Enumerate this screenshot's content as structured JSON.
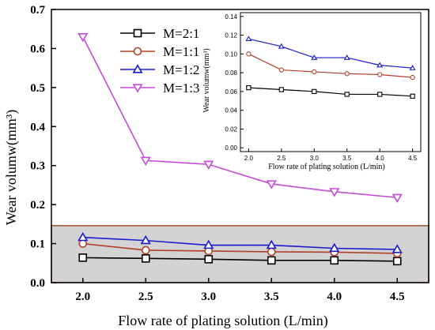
{
  "chart_data": [
    {
      "type": "line",
      "x": [
        2.0,
        2.5,
        3.0,
        3.5,
        4.0,
        4.5
      ],
      "x_tick_labels": [
        "2.0",
        "2.5",
        "3.0",
        "3.5",
        "4.0",
        "4.5"
      ],
      "xlabel": "Flow rate of plating solution (L/min)",
      "ylabel": "Wear volumw(mm³)",
      "ylim": [
        0.0,
        0.7
      ],
      "xlim": [
        1.75,
        4.75
      ],
      "y_ticks": [
        0.0,
        0.1,
        0.2,
        0.3,
        0.4,
        0.5,
        0.6,
        0.7
      ],
      "y_tick_labels": [
        "0.0",
        "0.1",
        "0.2",
        "0.3",
        "0.4",
        "0.5",
        "0.6",
        "0.7"
      ],
      "highlight_region": {
        "ymin": 0.0,
        "ymax": 0.146,
        "color": "#d3d3d3",
        "border": "#a0522d"
      },
      "legend_position": "top-left",
      "series": [
        {
          "name": "M=2:1",
          "marker": "square",
          "color": "#000000",
          "values": [
            0.064,
            0.062,
            0.06,
            0.057,
            0.057,
            0.055
          ]
        },
        {
          "name": "M=1:1",
          "marker": "circle",
          "color": "#b0402a",
          "values": [
            0.1,
            0.083,
            0.081,
            0.079,
            0.078,
            0.075
          ]
        },
        {
          "name": "M=1:2",
          "marker": "triangle-up",
          "color": "#1a1acc",
          "values": [
            0.116,
            0.108,
            0.096,
            0.096,
            0.088,
            0.085
          ]
        },
        {
          "name": "M=1:3",
          "marker": "triangle-down",
          "color": "#c64ad9",
          "values": [
            0.63,
            0.313,
            0.303,
            0.253,
            0.233,
            0.218
          ]
        }
      ]
    },
    {
      "type": "line",
      "inset": true,
      "x": [
        2.0,
        2.5,
        3.0,
        3.5,
        4.0,
        4.5
      ],
      "x_tick_labels": [
        "2.0",
        "2.5",
        "3.0",
        "3.5",
        "4.0",
        "4.5"
      ],
      "xlabel": "Flow rate of plating solution (L/min)",
      "ylabel": "Wear volumw(mm³)",
      "ylim": [
        -0.004,
        0.144
      ],
      "xlim": [
        1.875,
        4.625
      ],
      "y_ticks": [
        0.0,
        0.02,
        0.04,
        0.06,
        0.08,
        0.1,
        0.12,
        0.14
      ],
      "y_tick_labels": [
        "0.00",
        "0.02",
        "0.04",
        "0.06",
        "0.08",
        "0.10",
        "0.12",
        "0.14"
      ],
      "series": [
        {
          "marker": "square",
          "color": "#000000",
          "values": [
            0.064,
            0.062,
            0.06,
            0.057,
            0.057,
            0.055
          ]
        },
        {
          "marker": "circle",
          "color": "#b0402a",
          "values": [
            0.1,
            0.083,
            0.081,
            0.079,
            0.078,
            0.075
          ]
        },
        {
          "marker": "triangle-up",
          "color": "#1a1acc",
          "values": [
            0.116,
            0.108,
            0.096,
            0.096,
            0.088,
            0.085
          ]
        }
      ]
    }
  ]
}
